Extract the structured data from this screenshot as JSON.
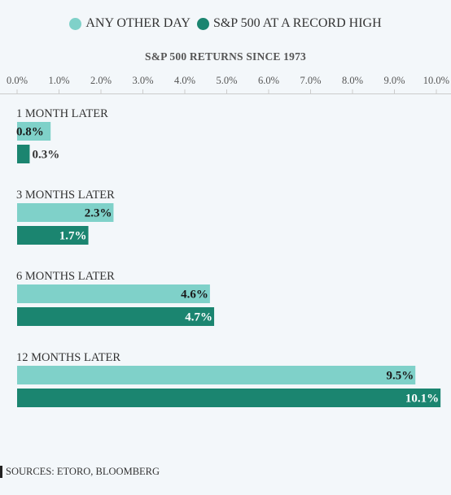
{
  "colors": {
    "other_day": "#7fd1c9",
    "record_high": "#1b8570",
    "axis": "#cccccc",
    "label_dark": "#1a1a1a",
    "label_light": "#ffffff"
  },
  "legend": [
    {
      "label": "ANY OTHER DAY",
      "color": "#7fd1c9"
    },
    {
      "label": "S&P 500 AT A RECORD HIGH",
      "color": "#1b8570"
    }
  ],
  "source": "SOURCES: ETORO, BLOOMBERG",
  "chart_data": {
    "type": "bar",
    "orientation": "horizontal",
    "title": "S&P 500 RETURNS SINCE 1973",
    "categories": [
      "1 MONTH LATER",
      "3 MONTHS LATER",
      "6 MONTHS LATER",
      "12 MONTHS LATER"
    ],
    "series": [
      {
        "name": "ANY OTHER DAY",
        "values": [
          0.8,
          2.3,
          4.6,
          9.5
        ],
        "labels": [
          "0.8%",
          "2.3%",
          "4.6%",
          "9.5%"
        ]
      },
      {
        "name": "S&P 500 AT A RECORD HIGH",
        "values": [
          0.3,
          1.7,
          4.7,
          10.1
        ],
        "labels": [
          "0.3%",
          "1.7%",
          "4.7%",
          "10.1%"
        ]
      }
    ],
    "xlim": [
      0,
      10.0
    ],
    "xticks": [
      "0.0%",
      "1.0%",
      "2.0%",
      "3.0%",
      "4.0%",
      "5.0%",
      "6.0%",
      "7.0%",
      "8.0%",
      "9.0%",
      "10.0%"
    ],
    "axis_position": "top",
    "legend_position": "top-center",
    "grid": false
  }
}
